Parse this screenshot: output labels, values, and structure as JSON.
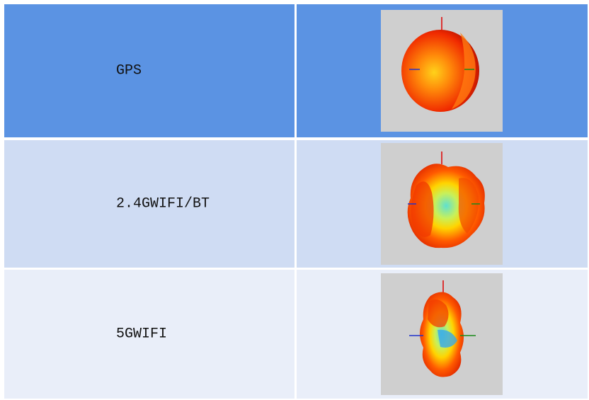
{
  "table": {
    "rows": [
      [
        "GPS"
      ],
      [
        "2.4GWIFI/BT"
      ],
      [
        "5GWIFI"
      ]
    ]
  }
}
